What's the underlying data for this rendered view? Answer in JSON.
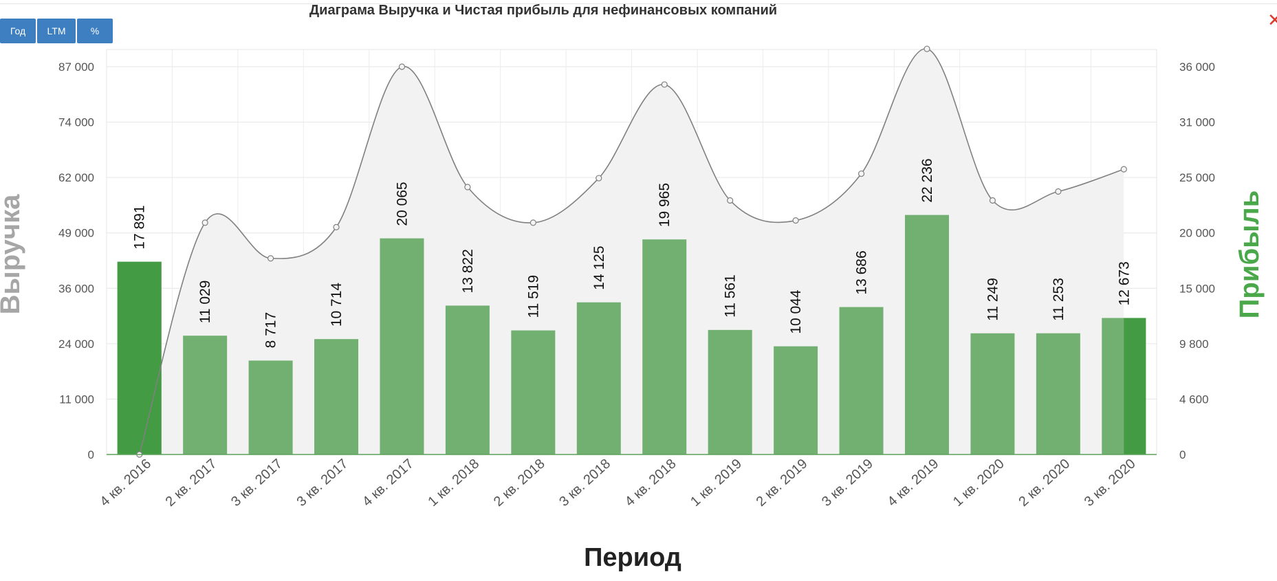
{
  "title": "Диаграма Выручка и Чистая прибыль для нефинансовых компаний",
  "buttons": [
    {
      "label": "Год"
    },
    {
      "label": "LTM"
    },
    {
      "label": "%"
    }
  ],
  "close_icon": "close-icon",
  "colors": {
    "bar": "#72b072",
    "bar_highlight": "#439c43",
    "line": "#808080",
    "area": "#f2f2f2",
    "profit_label": "#4aa84a",
    "revenue_label": "#a6a6a6",
    "button": "#3d7fc1"
  },
  "chart_data": {
    "type": "bar",
    "title": "Диаграма Выручка и Чистая прибыль для нефинансовых компаний",
    "xlabel": "Период",
    "ylabel_left": "Выручка",
    "ylabel_right": "Прибыль",
    "categories": [
      "4 кв. 2016",
      "2 кв. 2017",
      "3 кв. 2017",
      "3 кв. 2017",
      "4 кв. 2017",
      "1 кв. 2018",
      "2 кв. 2018",
      "3 кв. 2018",
      "4 кв. 2018",
      "1 кв. 2019",
      "2 кв. 2019",
      "3 кв. 2019",
      "4 кв. 2019",
      "1 кв. 2020",
      "2 кв. 2020",
      "3 кв. 2020"
    ],
    "left_ticks": [
      "0",
      "11 000",
      "24 000",
      "36 000",
      "49 000",
      "62 000",
      "74 000",
      "87 000"
    ],
    "right_ticks": [
      "0",
      "4 600",
      "9 800",
      "15 000",
      "20 000",
      "25 000",
      "31 000",
      "36 000"
    ],
    "y_left_range": [
      0,
      87000
    ],
    "y_right_range": [
      0,
      36000
    ],
    "grid": true,
    "series": [
      {
        "name": "Прибыль",
        "type": "bar",
        "axis": "right",
        "values": [
          17891,
          11029,
          8717,
          10714,
          20065,
          13822,
          11519,
          14125,
          19965,
          11561,
          10044,
          13686,
          22236,
          11249,
          11253,
          12673
        ],
        "labels": [
          "17 891",
          "11 029",
          "8 717",
          "10 714",
          "20 065",
          "13 822",
          "11 519",
          "14 125",
          "19 965",
          "11 561",
          "10 044",
          "13 686",
          "22 236",
          "11 249",
          "11 253",
          "12 673"
        ]
      },
      {
        "name": "Выручка",
        "type": "area",
        "axis": "left",
        "values": [
          0,
          52000,
          44000,
          51000,
          87000,
          60000,
          52000,
          62000,
          83000,
          57000,
          52500,
          63000,
          91000,
          57000,
          59000,
          64000
        ]
      }
    ]
  }
}
